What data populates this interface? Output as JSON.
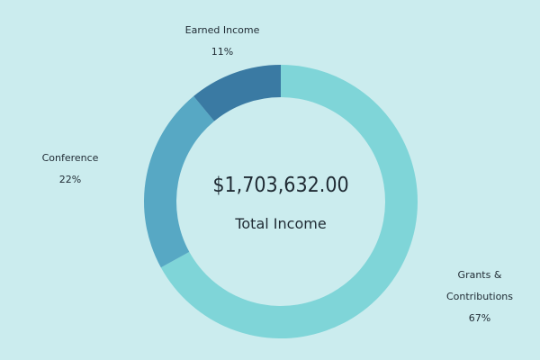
{
  "chart_data": {
    "type": "pie",
    "style": "donut",
    "center_value": "$1,703,632.00",
    "center_label": "Total Income",
    "slices": [
      {
        "label": "Grants & Contributions",
        "label_lines": [
          "Grants &",
          "Contributions"
        ],
        "percent_text": "67%",
        "value": 67,
        "color": "#7fd5d8"
      },
      {
        "label": "Conference",
        "label_lines": [
          "Conference"
        ],
        "percent_text": "22%",
        "value": 22,
        "color": "#57a8c4"
      },
      {
        "label": "Earned Income",
        "label_lines": [
          "Earned Income"
        ],
        "percent_text": "11%",
        "value": 11,
        "color": "#3a7aa3"
      }
    ],
    "background_color": "#cbecee",
    "legend": "none"
  }
}
